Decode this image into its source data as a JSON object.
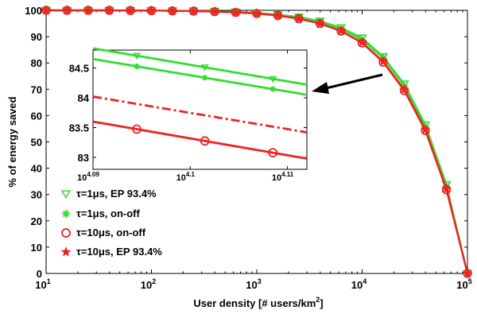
{
  "chart_data": [
    {
      "type": "line",
      "xscale": "log",
      "xlabel": "User density [# users/km",
      "xlabel_sup": "2",
      "xlabel_end": "]",
      "ylabel": "% of energy saved",
      "xlim": [
        10,
        100000
      ],
      "ylim": [
        0,
        100
      ],
      "xticks": [
        {
          "base": "10",
          "exp": "1"
        },
        {
          "base": "10",
          "exp": "2"
        },
        {
          "base": "10",
          "exp": "3"
        },
        {
          "base": "10",
          "exp": "4"
        },
        {
          "base": "10",
          "exp": "5"
        }
      ],
      "yticks": [
        "0",
        "10",
        "20",
        "30",
        "40",
        "50",
        "60",
        "70",
        "80",
        "90",
        "100"
      ],
      "grid": false,
      "legend_position": "bottom-left",
      "x": [
        10,
        15.8,
        25.1,
        39.8,
        63.1,
        100,
        158,
        251,
        398,
        631,
        1000,
        1585,
        2512,
        3981,
        6310,
        10000,
        15849,
        25119,
        39811,
        63096,
        100000
      ],
      "series": [
        {
          "name": "τ=1μs, EP 93.4%",
          "color": "#33dd33",
          "marker": "triangle-down",
          "values": [
            100,
            100,
            100,
            100,
            99.95,
            99.9,
            99.85,
            99.75,
            99.6,
            99.4,
            99.0,
            98.4,
            97.5,
            95.9,
            93.4,
            89.5,
            82.4,
            72.0,
            56.5,
            33.8,
            0
          ]
        },
        {
          "name": "τ=1μs, on-off",
          "color": "#33dd33",
          "marker": "asterisk",
          "values": [
            100,
            100,
            100,
            100,
            99.95,
            99.9,
            99.85,
            99.75,
            99.6,
            99.4,
            99.0,
            98.3,
            97.3,
            95.6,
            93.0,
            88.8,
            81.9,
            71.3,
            55.8,
            33.2,
            0
          ]
        },
        {
          "name": "τ=10μs, on-off",
          "color": "#ee2222",
          "marker": "circle",
          "values": [
            100,
            100,
            100,
            100,
            99.95,
            99.9,
            99.8,
            99.7,
            99.5,
            99.2,
            98.8,
            98.0,
            96.8,
            95.0,
            92.1,
            87.6,
            80.3,
            69.5,
            54.3,
            31.8,
            0
          ]
        },
        {
          "name": "τ=10μs, EP 93.4%",
          "color": "#ee2222",
          "marker": "star",
          "values": [
            100,
            100,
            100,
            100,
            99.95,
            99.9,
            99.8,
            99.7,
            99.5,
            99.2,
            98.8,
            98.0,
            96.8,
            95.0,
            92.2,
            87.8,
            80.6,
            69.9,
            54.7,
            32.2,
            0
          ]
        }
      ]
    },
    {
      "type": "line",
      "role": "inset",
      "xscale": "log",
      "xlim_exp": [
        4.09,
        4.112
      ],
      "ylim": [
        82.8,
        84.8
      ],
      "xticks": [
        {
          "base": "10",
          "exp": "4.09"
        },
        {
          "base": "10",
          "exp": "4.1"
        },
        {
          "base": "10",
          "exp": "4.11"
        }
      ],
      "yticks": [
        "83",
        "83.5",
        "84",
        "84.5"
      ],
      "series": [
        {
          "name": "τ=1μs, EP 93.4%",
          "color": "#33dd33",
          "style": "solid",
          "marker": "triangle-down",
          "x_exp": [
            4.09,
            4.112
          ],
          "values": [
            84.83,
            84.22
          ],
          "marker_x_exp": [
            4.0945,
            4.1015,
            4.1085
          ]
        },
        {
          "name": "τ=1μs, on-off",
          "color": "#33dd33",
          "style": "solid",
          "marker": "asterisk",
          "x_exp": [
            4.09,
            4.112
          ],
          "values": [
            84.65,
            84.05
          ],
          "marker_x_exp": [
            4.0945,
            4.1015,
            4.1085
          ]
        },
        {
          "name": "τ=10μs, EP 93.4%",
          "color": "#ee2222",
          "style": "dashdot",
          "marker": "none",
          "x_exp": [
            4.09,
            4.112
          ],
          "values": [
            84.02,
            83.42
          ],
          "marker_x_exp": []
        },
        {
          "name": "τ=10μs, on-off",
          "color": "#ee2222",
          "style": "solid",
          "marker": "circle",
          "x_exp": [
            4.09,
            4.112
          ],
          "values": [
            83.6,
            82.98
          ],
          "marker_x_exp": [
            4.0945,
            4.1015,
            4.1085
          ]
        }
      ]
    }
  ]
}
